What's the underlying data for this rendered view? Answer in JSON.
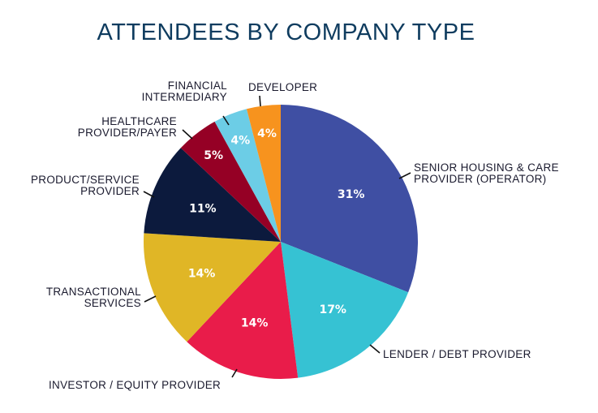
{
  "chart_data": {
    "type": "pie",
    "title": "ATTENDEES BY COMPANY TYPE",
    "categories": [
      "SENIOR HOUSING & CARE\nPROVIDER (OPERATOR)",
      "LENDER / DEBT PROVIDER",
      "INVESTOR / EQUITY PROVIDER",
      "TRANSACTIONAL\nSERVICES",
      "PRODUCT/SERVICE\nPROVIDER",
      "HEALTHCARE\nPROVIDER/PAYER",
      "FINANCIAL\nINTERMEDIARY",
      "DEVELOPER"
    ],
    "values": [
      31,
      17,
      14,
      14,
      11,
      5,
      4,
      4
    ],
    "data_labels": [
      "31%",
      "17%",
      "14%",
      "14%",
      "11%",
      "5%",
      "4%",
      "4%"
    ],
    "colors": [
      "#3f4fa3",
      "#36c2d3",
      "#e91c4a",
      "#e0b626",
      "#0c1a3d",
      "#950025",
      "#6ccde6",
      "#f7931e"
    ],
    "start": "top",
    "direction": "clockwise",
    "legend": "none (direct labels with leader lines)"
  }
}
